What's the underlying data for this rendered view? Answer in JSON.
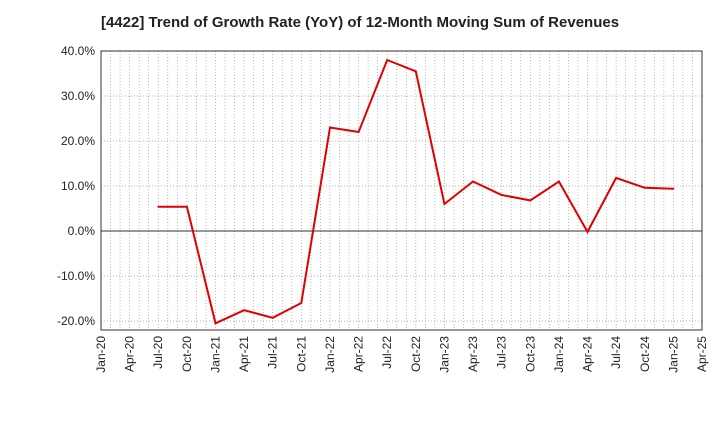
{
  "chart_data": {
    "type": "line",
    "title": "[4422]  Trend of Growth Rate (YoY) of 12-Month Moving Sum of Revenues",
    "xlabel": "",
    "ylabel": "",
    "ylim": [
      -22,
      40
    ],
    "y_ticks": [
      {
        "value": 40,
        "label": "40.0%"
      },
      {
        "value": 30,
        "label": "30.0%"
      },
      {
        "value": 20,
        "label": "20.0%"
      },
      {
        "value": 10,
        "label": "10.0%"
      },
      {
        "value": 0,
        "label": "0.0%"
      },
      {
        "value": -10,
        "label": "-10.0%"
      },
      {
        "value": -20,
        "label": "-20.0%"
      }
    ],
    "x_tick_labels": [
      "Jan-20",
      "Apr-20",
      "Jul-20",
      "Oct-20",
      "Jan-21",
      "Apr-21",
      "Jul-21",
      "Oct-21",
      "Jan-22",
      "Apr-22",
      "Jul-22",
      "Oct-22",
      "Jan-23",
      "Apr-23",
      "Jul-23",
      "Oct-23",
      "Jan-24",
      "Apr-24",
      "Jul-24",
      "Oct-24",
      "Jan-25",
      "Apr-25"
    ],
    "grid": true,
    "colors": {
      "line": "#e00000",
      "grid": "#9a9a9a",
      "zero_line": "#333333"
    },
    "series": [
      {
        "x": [
          "Jul-20",
          "Oct-20",
          "Jan-21",
          "Apr-21",
          "Jul-21",
          "Oct-21",
          "Jan-22",
          "Apr-22",
          "Jul-22",
          "Oct-22",
          "Jan-23",
          "Apr-23",
          "Jul-23",
          "Oct-23",
          "Jan-24",
          "Apr-24",
          "Jul-24",
          "Oct-24",
          "Jan-25"
        ],
        "values": [
          5.4,
          5.4,
          -20.5,
          -17.6,
          -19.3,
          -16.0,
          23.0,
          22.0,
          38.0,
          35.5,
          6.0,
          11.0,
          8.0,
          6.8,
          11.0,
          -0.2,
          11.8,
          9.6,
          9.4
        ]
      }
    ]
  }
}
